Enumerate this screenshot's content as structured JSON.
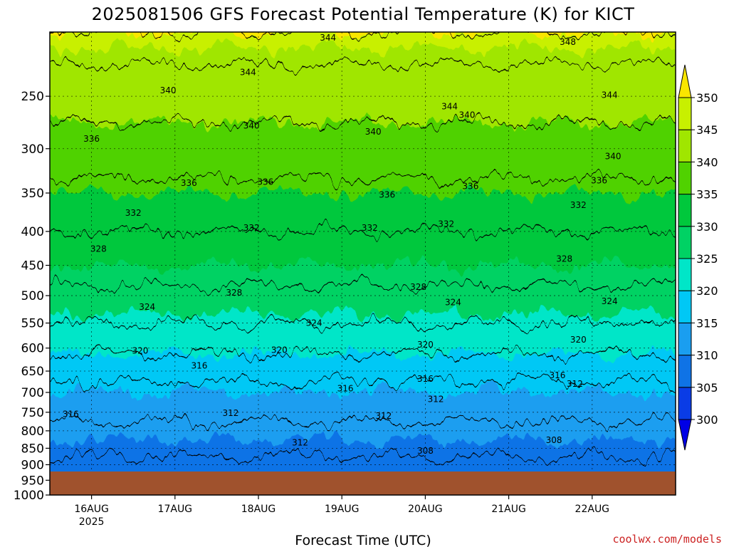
{
  "chart_data": {
    "type": "heatmap",
    "title": "2025081506 GFS Forecast Potential Temperature (K) for KICT",
    "xlabel": "Forecast Time (UTC)",
    "ylabel": "",
    "y_scale": "log-pressure",
    "ylim": [
      1000,
      200
    ],
    "y_ticks": [
      250,
      300,
      350,
      400,
      450,
      500,
      550,
      600,
      650,
      700,
      750,
      800,
      850,
      900,
      950,
      1000
    ],
    "x_ticks": [
      {
        "label": "16AUG",
        "sublabel": "2025",
        "hours": 18
      },
      {
        "label": "17AUG",
        "sublabel": "",
        "hours": 42
      },
      {
        "label": "18AUG",
        "sublabel": "",
        "hours": 66
      },
      {
        "label": "19AUG",
        "sublabel": "",
        "hours": 90
      },
      {
        "label": "20AUG",
        "sublabel": "",
        "hours": 114
      },
      {
        "label": "21AUG",
        "sublabel": "",
        "hours": 138
      },
      {
        "label": "22AUG",
        "sublabel": "",
        "hours": 162
      }
    ],
    "xlim_hours": [
      6,
      186
    ],
    "grid": true,
    "colorbar": {
      "levels": [
        300,
        305,
        310,
        315,
        320,
        325,
        330,
        335,
        340,
        345,
        350
      ],
      "colors": [
        "#0000e6",
        "#0a3ce6",
        "#0f73e6",
        "#1a9ef0",
        "#00c8f5",
        "#00e6c8",
        "#00d264",
        "#00c83c",
        "#50d200",
        "#a0e600",
        "#c8f000",
        "#fae600"
      ]
    },
    "contour_levels": [
      308,
      312,
      316,
      320,
      324,
      328,
      332,
      336,
      340,
      344,
      348
    ],
    "profile_shape_theta_by_pressure": [
      {
        "p": 200,
        "theta": 346
      },
      {
        "p": 250,
        "theta": 342
      },
      {
        "p": 300,
        "theta": 338
      },
      {
        "p": 350,
        "theta": 335
      },
      {
        "p": 400,
        "theta": 332
      },
      {
        "p": 450,
        "theta": 330
      },
      {
        "p": 500,
        "theta": 327
      },
      {
        "p": 550,
        "theta": 324
      },
      {
        "p": 600,
        "theta": 321
      },
      {
        "p": 650,
        "theta": 317
      },
      {
        "p": 700,
        "theta": 315
      },
      {
        "p": 750,
        "theta": 313
      },
      {
        "p": 800,
        "theta": 311
      },
      {
        "p": 850,
        "theta": 309
      },
      {
        "p": 900,
        "theta": 307
      },
      {
        "p": 950,
        "theta": 306
      },
      {
        "p": 1000,
        "theta": 305
      }
    ],
    "contour_labels": [
      {
        "text": "344",
        "hours": 86,
        "p": 204
      },
      {
        "text": "348",
        "hours": 155,
        "p": 207
      },
      {
        "text": "344",
        "hours": 63,
        "p": 230
      },
      {
        "text": "340",
        "hours": 40,
        "p": 245
      },
      {
        "text": "344",
        "hours": 121,
        "p": 259
      },
      {
        "text": "344",
        "hours": 167,
        "p": 249
      },
      {
        "text": "340",
        "hours": 126,
        "p": 267
      },
      {
        "text": "340",
        "hours": 64,
        "p": 277
      },
      {
        "text": "340",
        "hours": 99,
        "p": 283
      },
      {
        "text": "336",
        "hours": 18,
        "p": 290
      },
      {
        "text": "340",
        "hours": 168,
        "p": 308
      },
      {
        "text": "336",
        "hours": 46,
        "p": 338
      },
      {
        "text": "336",
        "hours": 68,
        "p": 337
      },
      {
        "text": "336",
        "hours": 127,
        "p": 342
      },
      {
        "text": "336",
        "hours": 164,
        "p": 335
      },
      {
        "text": "336",
        "hours": 103,
        "p": 352
      },
      {
        "text": "332",
        "hours": 30,
        "p": 375
      },
      {
        "text": "332",
        "hours": 158,
        "p": 365
      },
      {
        "text": "332",
        "hours": 64,
        "p": 395
      },
      {
        "text": "332",
        "hours": 98,
        "p": 395
      },
      {
        "text": "332",
        "hours": 120,
        "p": 390
      },
      {
        "text": "328",
        "hours": 20,
        "p": 425
      },
      {
        "text": "328",
        "hours": 154,
        "p": 440
      },
      {
        "text": "328",
        "hours": 112,
        "p": 485
      },
      {
        "text": "328",
        "hours": 59,
        "p": 495
      },
      {
        "text": "324",
        "hours": 34,
        "p": 520
      },
      {
        "text": "324",
        "hours": 122,
        "p": 512
      },
      {
        "text": "324",
        "hours": 167,
        "p": 510
      },
      {
        "text": "324",
        "hours": 82,
        "p": 550
      },
      {
        "text": "320",
        "hours": 114,
        "p": 593
      },
      {
        "text": "320",
        "hours": 158,
        "p": 583
      },
      {
        "text": "320",
        "hours": 72,
        "p": 604
      },
      {
        "text": "320",
        "hours": 32,
        "p": 606
      },
      {
        "text": "316",
        "hours": 49,
        "p": 638
      },
      {
        "text": "316",
        "hours": 114,
        "p": 668
      },
      {
        "text": "316",
        "hours": 152,
        "p": 660
      },
      {
        "text": "312",
        "hours": 157,
        "p": 680
      },
      {
        "text": "316",
        "hours": 91,
        "p": 691
      },
      {
        "text": "312",
        "hours": 117,
        "p": 717
      },
      {
        "text": "312",
        "hours": 58,
        "p": 752
      },
      {
        "text": "316",
        "hours": 12,
        "p": 755
      },
      {
        "text": "312",
        "hours": 102,
        "p": 760
      },
      {
        "text": "308",
        "hours": 151,
        "p": 826
      },
      {
        "text": "312",
        "hours": 78,
        "p": 834
      },
      {
        "text": "308",
        "hours": 114,
        "p": 858
      }
    ]
  },
  "credit": "coolwx.com/models"
}
